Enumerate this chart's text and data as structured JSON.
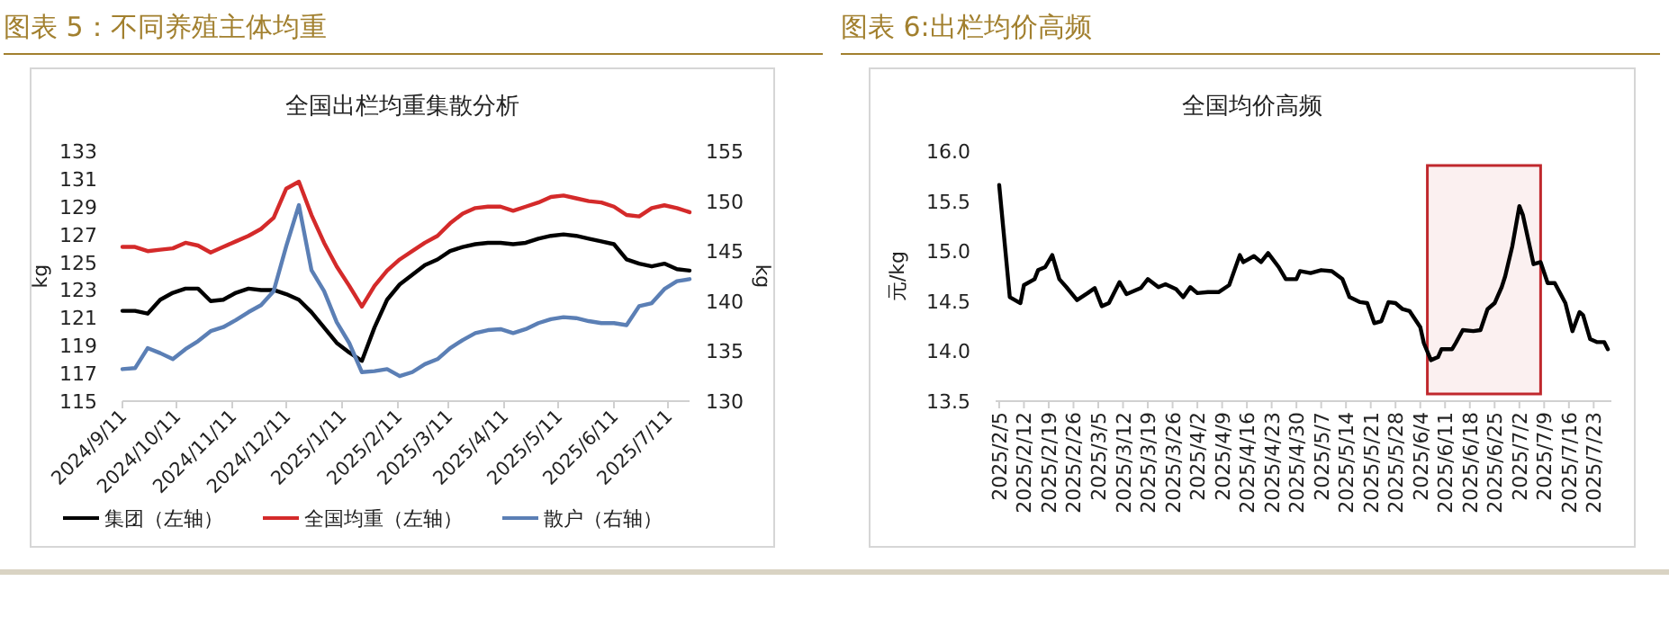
{
  "chart_data": [
    {
      "type": "line",
      "title": "图表 5：不同养殖主体均重",
      "subtitle": "全国出栏均重集散分析",
      "ylabel": "kg",
      "y2label": "kg",
      "x": [
        "2024-09-11",
        "2024-09-18",
        "2024-09-25",
        "2024-10-02",
        "2024-10-09",
        "2024-10-16",
        "2024-10-23",
        "2024-10-30",
        "2024-11-06",
        "2024-11-13",
        "2024-11-20",
        "2024-11-27",
        "2024-12-04",
        "2024-12-11",
        "2024-12-18",
        "2024-12-25",
        "2025-01-01",
        "2025-01-08",
        "2025-01-15",
        "2025-01-22",
        "2025-01-29",
        "2025-02-05",
        "2025-02-12",
        "2025-02-19",
        "2025-02-26",
        "2025-03-05",
        "2025-03-12",
        "2025-03-19",
        "2025-03-26",
        "2025-04-02",
        "2025-04-09",
        "2025-04-16",
        "2025-04-23",
        "2025-04-30",
        "2025-05-07",
        "2025-05-14",
        "2025-05-21",
        "2025-05-28",
        "2025-06-04",
        "2025-06-11",
        "2025-06-18",
        "2025-06-25",
        "2025-07-02",
        "2025-07-09",
        "2025-07-16",
        "2025-07-23"
      ],
      "xlim": [
        "2024-09-11",
        "2025-07-23"
      ],
      "xticks": [
        {
          "value": "2024-09-11",
          "label": "2024/9/11"
        },
        {
          "value": "2024-10-11",
          "label": "2024/10/11"
        },
        {
          "value": "2024-11-11",
          "label": "2024/11/11"
        },
        {
          "value": "2024-12-11",
          "label": "2024/12/11"
        },
        {
          "value": "2025-01-11",
          "label": "2025/1/11"
        },
        {
          "value": "2025-02-11",
          "label": "2025/2/11"
        },
        {
          "value": "2025-03-11",
          "label": "2025/3/11"
        },
        {
          "value": "2025-04-11",
          "label": "2025/4/11"
        },
        {
          "value": "2025-05-11",
          "label": "2025/5/11"
        },
        {
          "value": "2025-06-11",
          "label": "2025/6/11"
        },
        {
          "value": "2025-07-11",
          "label": "2025/7/11"
        }
      ],
      "ylim": [
        115,
        133
      ],
      "yticks": [
        115,
        117,
        119,
        121,
        123,
        125,
        127,
        129,
        131,
        133
      ],
      "y2lim": [
        130,
        155
      ],
      "y2ticks": [
        130,
        135,
        140,
        145,
        150,
        155
      ],
      "legend": "bottom",
      "grid": false,
      "series": [
        {
          "name": "集团（左轴）",
          "color": "#000000",
          "values": [
            121.5,
            121.5,
            121.3,
            122.3,
            122.8,
            123.1,
            123.1,
            122.2,
            122.3,
            122.8,
            123.1,
            123.0,
            123.0,
            122.7,
            122.3,
            121.4,
            120.3,
            119.2,
            118.5,
            117.9,
            120.3,
            122.3,
            123.4,
            124.1,
            124.8,
            125.2,
            125.8,
            126.1,
            126.3,
            126.4,
            126.4,
            126.3,
            126.4,
            126.7,
            126.9,
            127.0,
            126.9,
            126.7,
            126.5,
            126.3,
            125.2,
            124.9,
            124.7,
            124.9,
            124.5,
            124.4
          ]
        },
        {
          "name": "全国均重（左轴）",
          "color": "#d42a2a",
          "values": [
            126.1,
            126.1,
            125.8,
            125.9,
            126.0,
            126.4,
            126.2,
            125.7,
            126.1,
            126.5,
            126.9,
            127.4,
            128.2,
            130.3,
            130.8,
            128.4,
            126.4,
            124.7,
            123.3,
            121.8,
            123.3,
            124.4,
            125.2,
            125.8,
            126.4,
            126.9,
            127.8,
            128.5,
            128.9,
            129.0,
            129.0,
            128.7,
            129.0,
            129.3,
            129.7,
            129.8,
            129.6,
            129.4,
            129.3,
            129.0,
            128.4,
            128.3,
            128.9,
            129.1,
            128.9,
            128.6
          ]
        },
        {
          "name": "散户（右轴）",
          "color": "#5b7fb5",
          "axis": "y2",
          "values": [
            133.2,
            133.3,
            135.3,
            134.8,
            134.2,
            135.2,
            136.0,
            137.0,
            137.4,
            138.1,
            138.9,
            139.6,
            141.0,
            145.5,
            149.6,
            143.1,
            141.0,
            137.9,
            135.8,
            132.9,
            133.0,
            133.2,
            132.5,
            132.9,
            133.7,
            134.2,
            135.3,
            136.1,
            136.8,
            137.1,
            137.2,
            136.8,
            137.2,
            137.8,
            138.2,
            138.4,
            138.3,
            138.0,
            137.8,
            137.8,
            137.6,
            139.5,
            139.8,
            141.2,
            142.0,
            142.2
          ]
        }
      ]
    },
    {
      "type": "line",
      "title": "图表 6:出栏均价高频",
      "subtitle": "全国均价高频",
      "ylabel": "元/kg",
      "x": [
        "2025-02-05",
        "2025-02-08",
        "2025-02-10",
        "2025-02-11",
        "2025-02-12",
        "2025-02-15",
        "2025-02-16",
        "2025-02-18",
        "2025-02-20",
        "2025-02-22",
        "2025-02-24",
        "2025-02-27",
        "2025-03-02",
        "2025-03-04",
        "2025-03-06",
        "2025-03-08",
        "2025-03-11",
        "2025-03-13",
        "2025-03-17",
        "2025-03-19",
        "2025-03-22",
        "2025-03-24",
        "2025-03-27",
        "2025-03-29",
        "2025-03-31",
        "2025-04-02",
        "2025-04-05",
        "2025-04-08",
        "2025-04-11",
        "2025-04-14",
        "2025-04-15",
        "2025-04-18",
        "2025-04-20",
        "2025-04-22",
        "2025-04-25",
        "2025-04-27",
        "2025-04-30",
        "2025-05-01",
        "2025-05-04",
        "2025-05-07",
        "2025-05-10",
        "2025-05-13",
        "2025-05-15",
        "2025-05-18",
        "2025-05-20",
        "2025-05-22",
        "2025-05-24",
        "2025-05-26",
        "2025-05-28",
        "2025-05-30",
        "2025-06-01",
        "2025-06-04",
        "2025-06-05",
        "2025-06-07",
        "2025-06-09",
        "2025-06-10",
        "2025-06-13",
        "2025-06-14",
        "2025-06-16",
        "2025-06-19",
        "2025-06-21",
        "2025-06-23",
        "2025-06-25",
        "2025-06-27",
        "2025-06-28",
        "2025-06-30",
        "2025-07-02",
        "2025-07-03",
        "2025-07-06",
        "2025-07-08",
        "2025-07-10",
        "2025-07-12",
        "2025-07-15",
        "2025-07-17",
        "2025-07-19",
        "2025-07-20",
        "2025-07-22",
        "2025-07-24",
        "2025-07-26",
        "2025-07-27"
      ],
      "values": [
        15.66,
        14.54,
        14.5,
        14.48,
        14.66,
        14.72,
        14.81,
        14.84,
        14.96,
        14.72,
        14.64,
        14.51,
        14.58,
        14.63,
        14.45,
        14.48,
        14.69,
        14.57,
        14.63,
        14.72,
        14.64,
        14.67,
        14.62,
        14.54,
        14.64,
        14.58,
        14.59,
        14.59,
        14.66,
        14.96,
        14.89,
        14.95,
        14.89,
        14.98,
        14.84,
        14.72,
        14.72,
        14.8,
        14.78,
        14.81,
        14.8,
        14.72,
        14.54,
        14.49,
        14.48,
        14.28,
        14.3,
        14.49,
        14.48,
        14.42,
        14.4,
        14.24,
        14.08,
        13.91,
        13.94,
        14.02,
        14.02,
        14.08,
        14.21,
        14.2,
        14.21,
        14.42,
        14.48,
        14.64,
        14.75,
        15.05,
        15.45,
        15.36,
        14.87,
        14.89,
        14.68,
        14.68,
        14.48,
        14.2,
        14.39,
        14.36,
        14.12,
        14.09,
        14.09,
        14.02
      ],
      "color": "#000000",
      "xlim": [
        "2025-02-04",
        "2025-07-28"
      ],
      "xticks": [
        {
          "value": "2025-02-05",
          "label": "2025/2/5"
        },
        {
          "value": "2025-02-12",
          "label": "2025/2/12"
        },
        {
          "value": "2025-02-19",
          "label": "2025/2/19"
        },
        {
          "value": "2025-02-26",
          "label": "2025/2/26"
        },
        {
          "value": "2025-03-05",
          "label": "2025/3/5"
        },
        {
          "value": "2025-03-12",
          "label": "2025/3/12"
        },
        {
          "value": "2025-03-19",
          "label": "2025/3/19"
        },
        {
          "value": "2025-03-26",
          "label": "2025/3/26"
        },
        {
          "value": "2025-04-02",
          "label": "2025/4/2"
        },
        {
          "value": "2025-04-09",
          "label": "2025/4/9"
        },
        {
          "value": "2025-04-16",
          "label": "2025/4/16"
        },
        {
          "value": "2025-04-23",
          "label": "2025/4/23"
        },
        {
          "value": "2025-04-30",
          "label": "2025/4/30"
        },
        {
          "value": "2025-05-07",
          "label": "2025/5/7"
        },
        {
          "value": "2025-05-14",
          "label": "2025/5/14"
        },
        {
          "value": "2025-05-21",
          "label": "2025/5/21"
        },
        {
          "value": "2025-05-28",
          "label": "2025/5/28"
        },
        {
          "value": "2025-06-04",
          "label": "2025/6/4"
        },
        {
          "value": "2025-06-11",
          "label": "2025/6/11"
        },
        {
          "value": "2025-06-18",
          "label": "2025/6/18"
        },
        {
          "value": "2025-06-25",
          "label": "2025/6/25"
        },
        {
          "value": "2025-07-02",
          "label": "2025/7/2"
        },
        {
          "value": "2025-07-09",
          "label": "2025/7/9"
        },
        {
          "value": "2025-07-16",
          "label": "2025/7/16"
        },
        {
          "value": "2025-07-23",
          "label": "2025/7/23"
        }
      ],
      "ylim": [
        13.5,
        16
      ],
      "yticks": [
        {
          "value": 13.5,
          "label": "13.5"
        },
        {
          "value": 14,
          "label": "14.0"
        },
        {
          "value": 14.5,
          "label": "14.5"
        },
        {
          "value": 15,
          "label": "15.0"
        },
        {
          "value": 15.5,
          "label": "15.5"
        },
        {
          "value": 16,
          "label": "16.0"
        }
      ],
      "grid": false,
      "legend": false,
      "bands": [
        {
          "axis": "x",
          "from": "2025-06-06",
          "to": "2025-07-08",
          "color": "#c0282d"
        }
      ]
    }
  ]
}
